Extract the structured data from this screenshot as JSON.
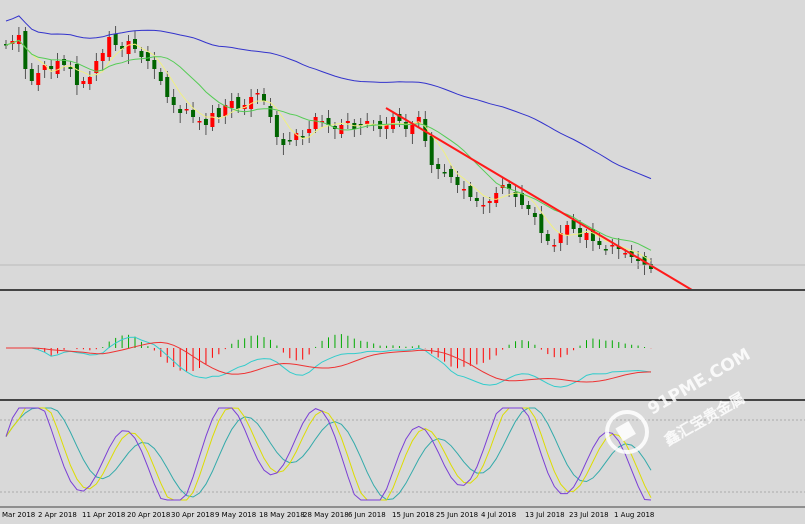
{
  "chart_data": {
    "type": "candlestick",
    "instrument": "",
    "x_tick_labels": [
      "Mar 2018",
      "2 Apr 2018",
      "11 Apr 2018",
      "20 Apr 2018",
      "30 Apr 2018",
      "9 May 2018",
      "18 May 2018",
      "28 May 2018",
      "6 Jun 2018",
      "15 Jun 2018",
      "25 Jun 2018",
      "4 Jul 2018",
      "13 Jul 2018",
      "23 Jul 2018",
      "1 Aug 2018"
    ],
    "price_close_relative": [
      0.1,
      0.08,
      0.05,
      0.22,
      0.28,
      0.24,
      0.2,
      0.22,
      0.18,
      0.2,
      0.22,
      0.3,
      0.28,
      0.26,
      0.18,
      0.14,
      0.06,
      0.1,
      0.12,
      0.08,
      0.12,
      0.16,
      0.18,
      0.22,
      0.28,
      0.36,
      0.4,
      0.44,
      0.42,
      0.46,
      0.48,
      0.5,
      0.44,
      0.46,
      0.4,
      0.38,
      0.42,
      0.4,
      0.36,
      0.34,
      0.38,
      0.46,
      0.56,
      0.6,
      0.58,
      0.54,
      0.56,
      0.52,
      0.46,
      0.48,
      0.5,
      0.52,
      0.5,
      0.48,
      0.52,
      0.5,
      0.48,
      0.5,
      0.52,
      0.5,
      0.46,
      0.48,
      0.52,
      0.5,
      0.46,
      0.58,
      0.7,
      0.72,
      0.74,
      0.76,
      0.8,
      0.82,
      0.86,
      0.88,
      0.9,
      0.88,
      0.84,
      0.8,
      0.82,
      0.86,
      0.9,
      0.92,
      0.96,
      1.04,
      1.08,
      1.1,
      1.04,
      1.0,
      1.02,
      1.06,
      1.04,
      1.08,
      1.1,
      1.12,
      1.1,
      1.12,
      1.14,
      1.16,
      1.18,
      1.2,
      1.22
    ],
    "lines": [
      {
        "role": "trendline",
        "color": "#ff1a1a"
      },
      {
        "role": "moving-average-slow",
        "color": "#3333cc"
      },
      {
        "role": "moving-average-mid",
        "color": "#55cc55"
      },
      {
        "role": "moving-average-fast",
        "color": "#f0f080"
      }
    ],
    "macd_panel": {
      "histogram_color_up": "#00aa00",
      "histogram_color_down": "#ff0000",
      "signal_color": "#ee3333",
      "macd_color": "#33cccc"
    },
    "stochastic_panel": {
      "k_color": "#7b3fd6",
      "d_color": "#dddd00",
      "slow_color": "#33aaaa"
    },
    "colors": {
      "background": "#d9d9d9",
      "up_candle": "#ff0000",
      "down_candle": "#006400",
      "separator": "#444444"
    }
  },
  "watermark": {
    "line1": "91PME.COM",
    "line2": "鑫汇宝贵金属"
  }
}
